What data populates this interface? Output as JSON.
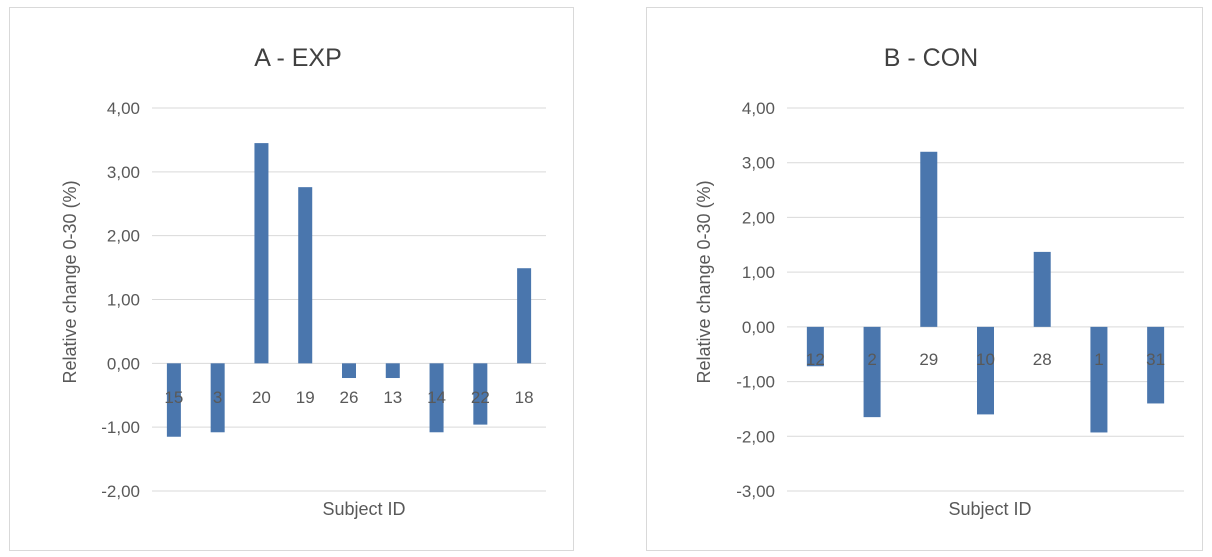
{
  "chart_data": [
    {
      "type": "bar",
      "title": "A - EXP",
      "xlabel": "Subject ID",
      "ylabel": "Relative change 0-30 (%)",
      "categories": [
        "15",
        "3",
        "20",
        "19",
        "26",
        "13",
        "14",
        "22",
        "18"
      ],
      "values": [
        -1.15,
        -1.08,
        3.45,
        2.76,
        -0.23,
        -0.23,
        -1.08,
        -0.96,
        1.49
      ],
      "ylim": [
        -2,
        4
      ],
      "yticks": [
        4,
        3,
        2,
        1,
        0,
        -1,
        -2
      ],
      "ytick_labels": [
        "4,00",
        "3,00",
        "2,00",
        "1,00",
        "0,00",
        "-1,00",
        "-2,00"
      ],
      "grid": true,
      "color": "#4a76ad"
    },
    {
      "type": "bar",
      "title": "B - CON",
      "xlabel": "Subject ID",
      "ylabel": "Relative change 0-30 (%)",
      "categories": [
        "12",
        "2",
        "29",
        "10",
        "28",
        "1",
        "31"
      ],
      "values": [
        -0.72,
        -1.65,
        3.2,
        -1.6,
        1.37,
        -1.93,
        -1.4
      ],
      "ylim": [
        -3,
        4
      ],
      "yticks": [
        4,
        3,
        2,
        1,
        0,
        -1,
        -2,
        -3
      ],
      "ytick_labels": [
        "4,00",
        "3,00",
        "2,00",
        "1,00",
        "0,00",
        "-1,00",
        "-2,00",
        "-3,00"
      ],
      "grid": true,
      "color": "#4a76ad"
    }
  ]
}
